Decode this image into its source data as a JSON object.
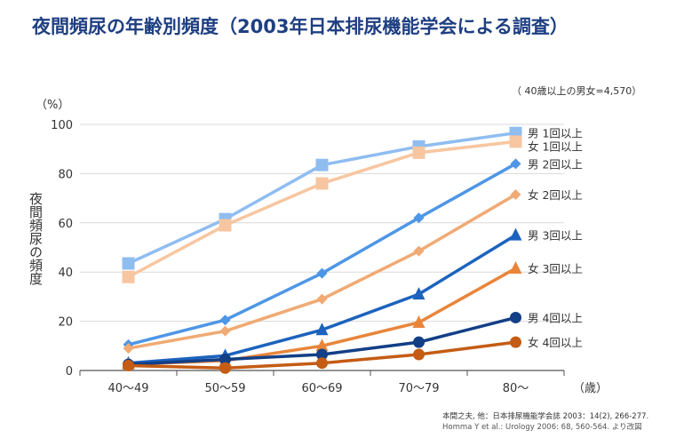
{
  "title": "夜間頻尿の年齢別頻度（2003年日本排尿機能学会による調査）",
  "note": "（ 40歳以上の男女=4,570）",
  "sources": [
    "本間之夫, 他：日本排尿機能学会誌 2003：14(2), 266-277.",
    "Homma Y et al.: Urology 2006: 68, 560-564. より改図"
  ],
  "chart_data": {
    "type": "line",
    "categories": [
      "40～49",
      "50～59",
      "60～69",
      "70～79",
      "80～"
    ],
    "ylabel": "夜間頻尿の頻度",
    "yunit": "（%）",
    "xunit": "（歳）",
    "ylim": [
      0,
      100
    ],
    "yticks": [
      0,
      20,
      40,
      60,
      80,
      100
    ],
    "grid": true,
    "legend": "right, at line ends",
    "series": [
      {
        "name": "男 1回以上",
        "values": [
          43.5,
          61.5,
          83.5,
          91,
          96.5
        ],
        "color": "#8fbdf0",
        "marker": "square"
      },
      {
        "name": "女 1回以上",
        "values": [
          38,
          59,
          76,
          88.5,
          93
        ],
        "color": "#f7c6a0",
        "marker": "square"
      },
      {
        "name": "男 2回以上",
        "values": [
          10.5,
          20.5,
          39.5,
          62,
          84
        ],
        "color": "#4e96e6",
        "marker": "diamond"
      },
      {
        "name": "女 2回以上",
        "values": [
          9,
          16,
          29,
          48.5,
          71.5
        ],
        "color": "#f0aa74",
        "marker": "diamond"
      },
      {
        "name": "男 3回以上",
        "values": [
          3,
          6,
          16.5,
          31,
          55
        ],
        "color": "#1c63be",
        "marker": "triangle"
      },
      {
        "name": "女 3回以上",
        "values": [
          2.5,
          4,
          10,
          19.5,
          41.5
        ],
        "color": "#e9853a",
        "marker": "triangle"
      },
      {
        "name": "男 4回以上",
        "values": [
          2.5,
          4.5,
          6.5,
          11.5,
          21.5
        ],
        "color": "#123f86",
        "marker": "circle"
      },
      {
        "name": "女 4回以上",
        "values": [
          2,
          1,
          3,
          6.5,
          11.5
        ],
        "color": "#c45c14",
        "marker": "circle"
      }
    ]
  }
}
